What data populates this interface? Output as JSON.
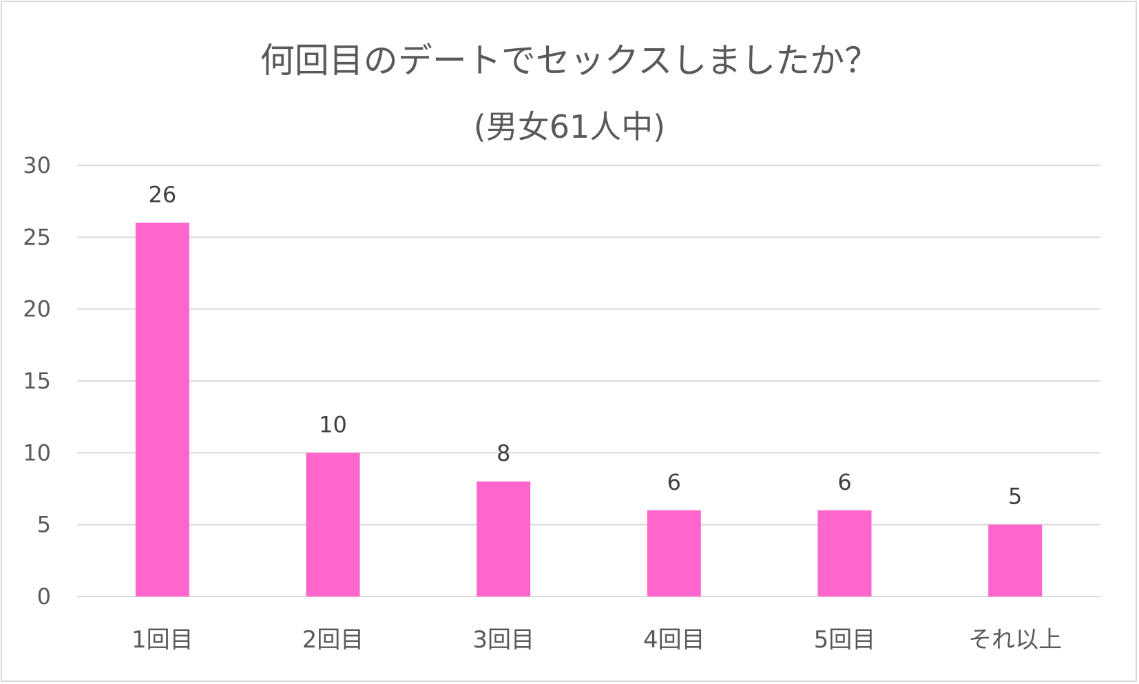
{
  "chart_data": {
    "type": "bar",
    "title": "何回目のデートでセックスしましたか？",
    "subtitle": "(男女61人中)",
    "categories": [
      "1回目",
      "2回目",
      "3回目",
      "4回目",
      "5回目",
      "それ以上"
    ],
    "values": [
      26,
      10,
      8,
      6,
      6,
      5
    ],
    "ylim": [
      0,
      30
    ],
    "yticks": [
      0,
      5,
      10,
      15,
      20,
      25,
      30
    ],
    "grid": true,
    "legend": "none",
    "bar_color": "#ff66cc",
    "data_labels": [
      "26",
      "10",
      "8",
      "6",
      "6",
      "5"
    ]
  },
  "colors": {
    "bar": "#ff66cc",
    "gridline": "#d9d9d9",
    "text": "#595959",
    "data_label": "#404040",
    "border": "#d9d9d9"
  }
}
